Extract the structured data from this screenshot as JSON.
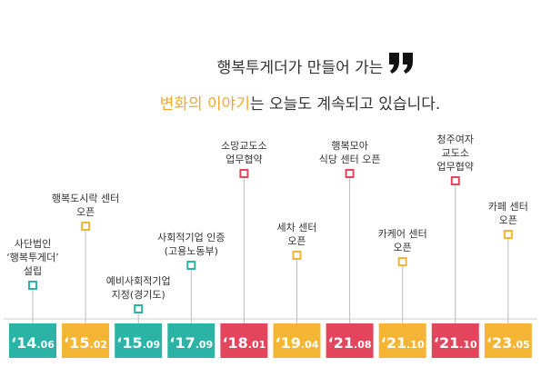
{
  "header": {
    "line1": "행복투게더가 만들어 가는",
    "highlight": "변화의 이야기",
    "line2_rest": "는 오늘도 계속되고 있습니다."
  },
  "milestones": [
    {
      "year": "‘14",
      "month": ".06",
      "color": "#2bb3a6",
      "label": [
        "사단법인",
        "‘행복투게더’",
        "설립"
      ]
    },
    {
      "year": "‘15",
      "month": ".02",
      "color": "#f4b534",
      "label": [
        "행복도시락 센터",
        "오픈"
      ]
    },
    {
      "year": "‘15",
      "month": ".09",
      "color": "#2bb3a6",
      "label": [
        "예비사회적기업",
        "지정(경기도)"
      ]
    },
    {
      "year": "‘17",
      "month": ".09",
      "color": "#2bb3a6",
      "label": [
        "사회적기업 인증",
        "(고용노동부)"
      ]
    },
    {
      "year": "‘18",
      "month": ".01",
      "color": "#e2455c",
      "label": [
        "소망교도소",
        "업무협약"
      ]
    },
    {
      "year": "‘19",
      "month": ".04",
      "color": "#f4b534",
      "label": [
        "세차 센터",
        "오픈"
      ]
    },
    {
      "year": "‘21",
      "month": ".08",
      "color": "#e2455c",
      "label": [
        "행복모아",
        "식당 센터 오픈"
      ]
    },
    {
      "year": "‘21",
      "month": ".10",
      "color": "#f4b534",
      "label": [
        "카케어 센터",
        "오픈"
      ]
    },
    {
      "year": "‘21",
      "month": ".10",
      "color": "#e2455c",
      "label": [
        "청주여자",
        "교도소",
        "업무협약"
      ]
    },
    {
      "year": "‘23",
      "month": ".05",
      "color": "#f4b534",
      "label": [
        "카페 센터",
        "오픈"
      ]
    }
  ]
}
